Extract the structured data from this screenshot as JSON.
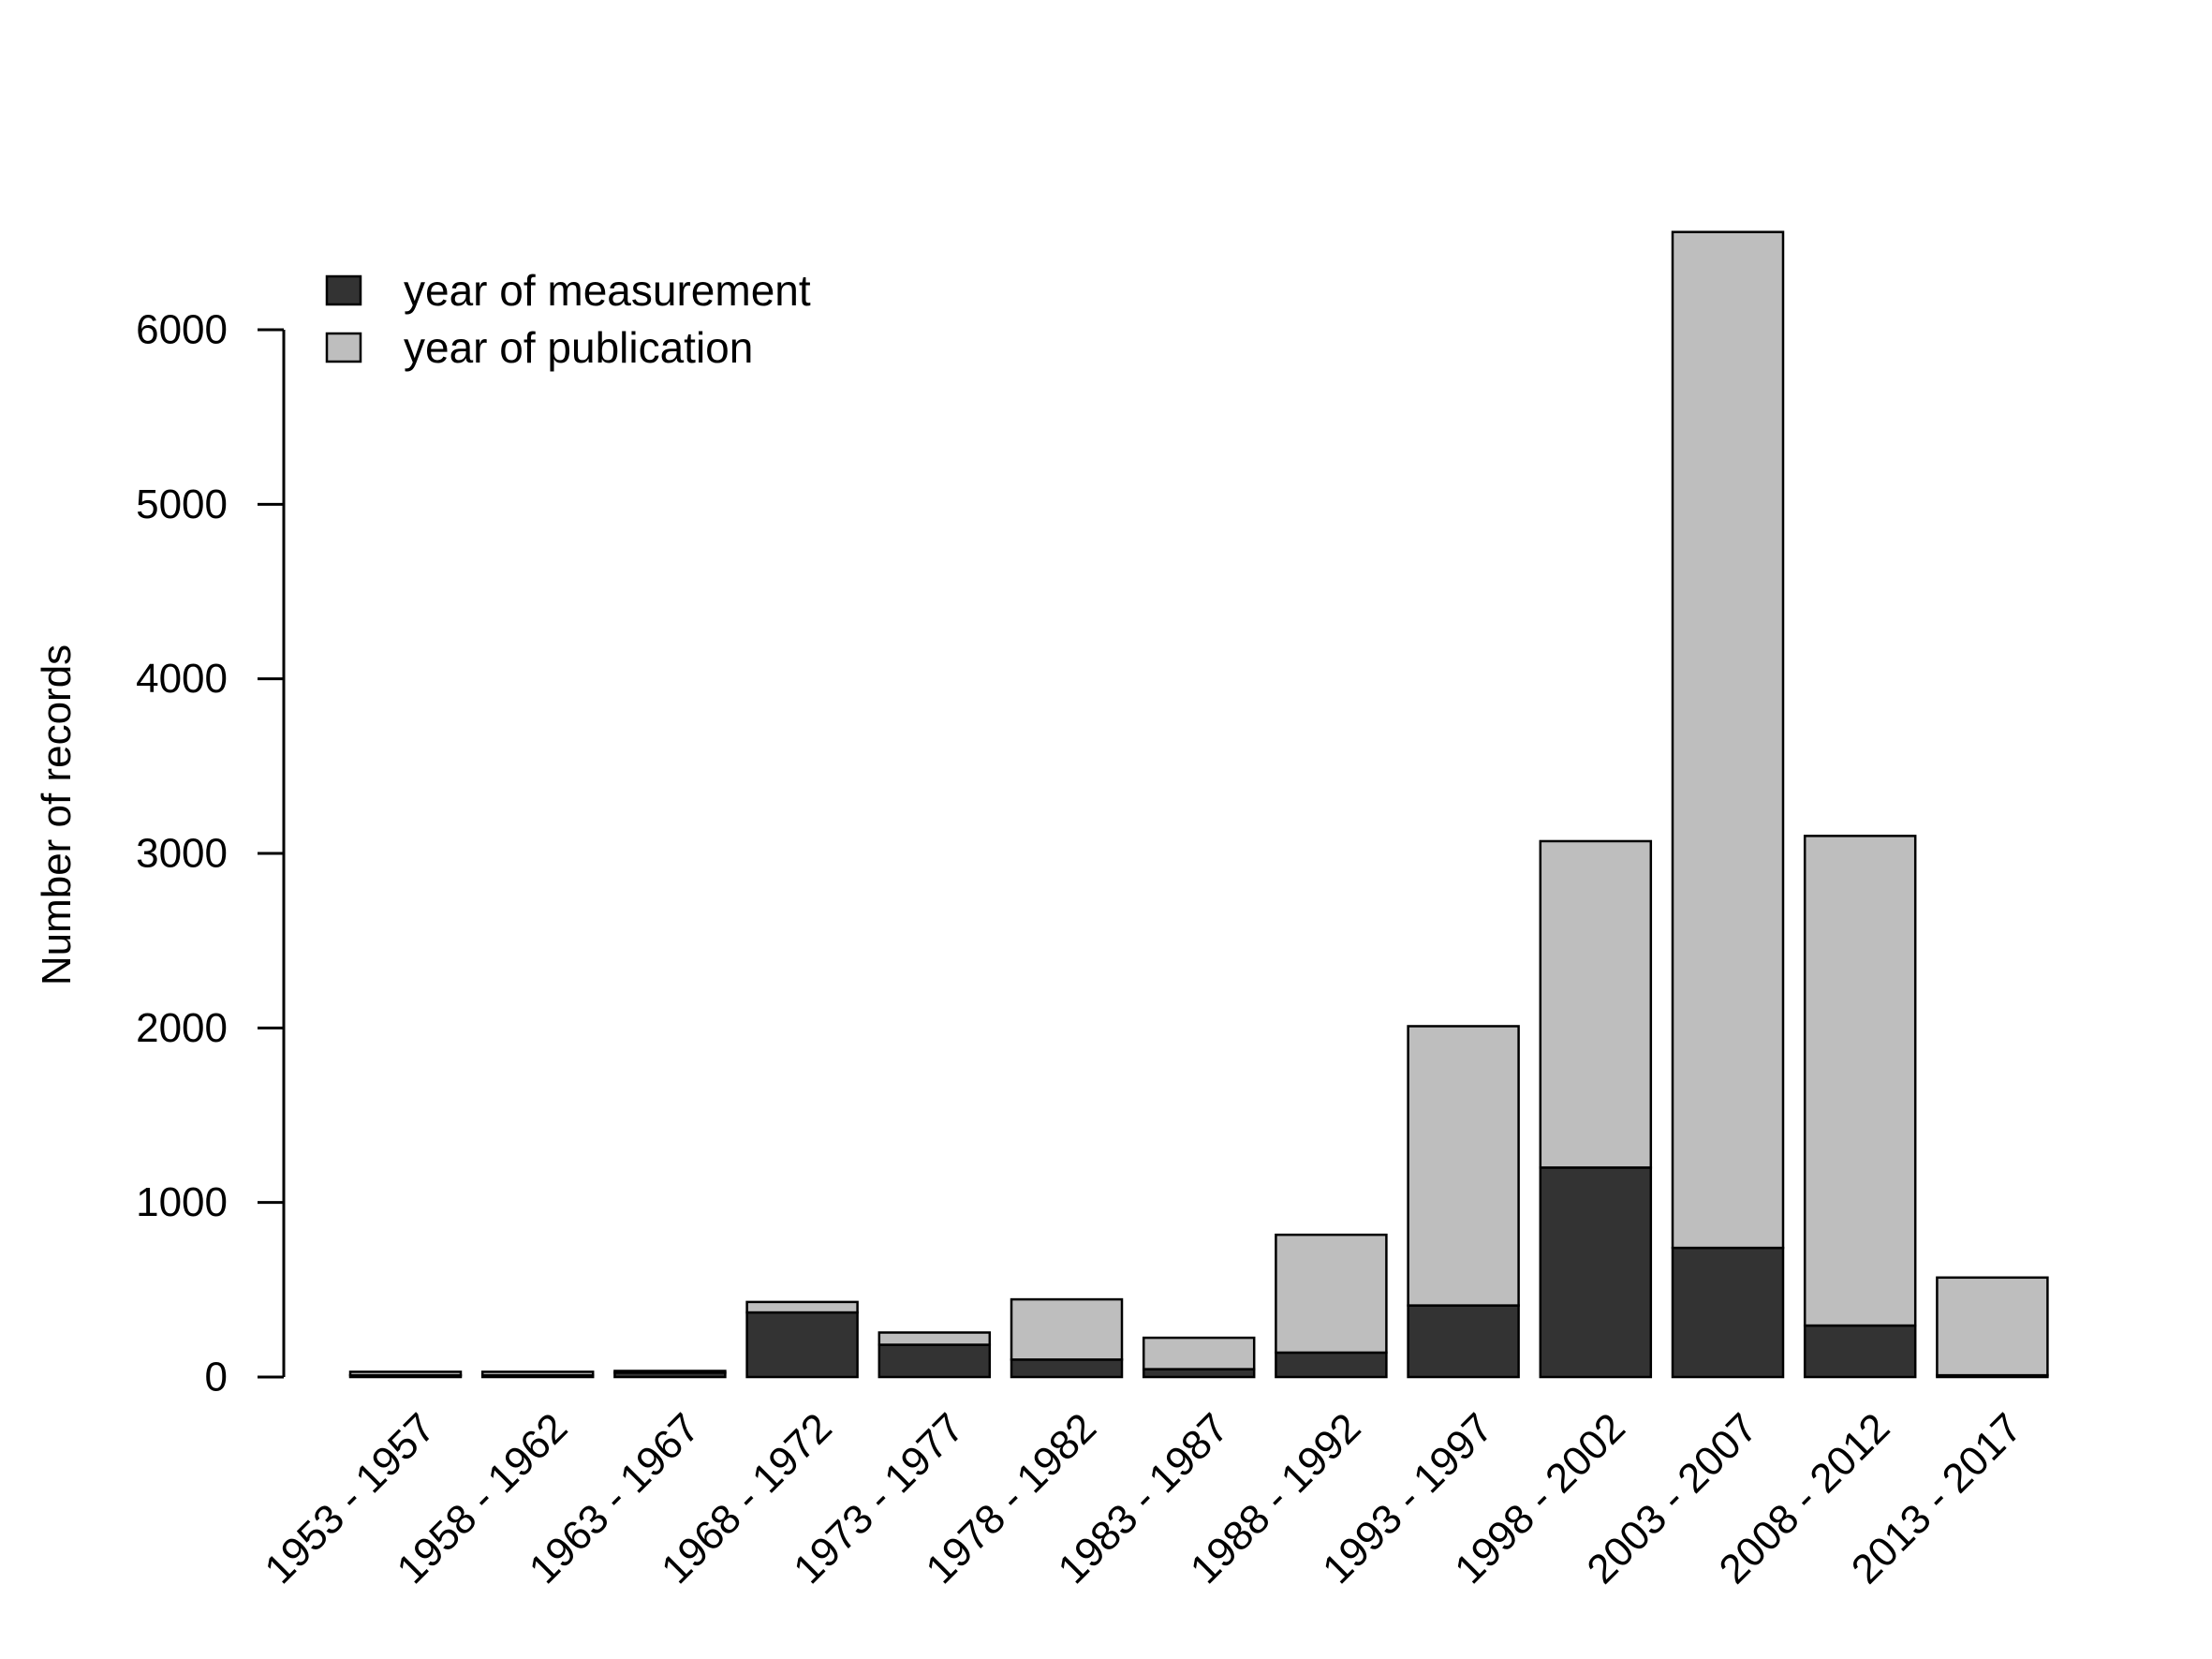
{
  "chart_data": {
    "type": "bar",
    "stacked": true,
    "title": "",
    "xlabel": "",
    "ylabel": "Number of records",
    "ylim": [
      0,
      6600
    ],
    "y_ticks": [
      0,
      1000,
      2000,
      3000,
      4000,
      5000,
      6000
    ],
    "grid": false,
    "legend_position": "top-left",
    "categories": [
      "1953 - 1957",
      "1958 - 1962",
      "1963 - 1967",
      "1968 - 1972",
      "1973 - 1977",
      "1978 - 1982",
      "1983 - 1987",
      "1988 - 1992",
      "1993 - 1997",
      "1998 - 2002",
      "2003 - 2007",
      "2008 - 2012",
      "2013 - 2017"
    ],
    "series": [
      {
        "name": "year of measurement",
        "color": "#333333",
        "values": [
          10,
          10,
          25,
          370,
          185,
          100,
          45,
          140,
          410,
          1200,
          740,
          295,
          10
        ]
      },
      {
        "name": "year of publication",
        "color": "#bebebe",
        "values": [
          20,
          20,
          10,
          60,
          70,
          345,
          180,
          675,
          1600,
          1870,
          5820,
          2805,
          560
        ]
      }
    ]
  }
}
